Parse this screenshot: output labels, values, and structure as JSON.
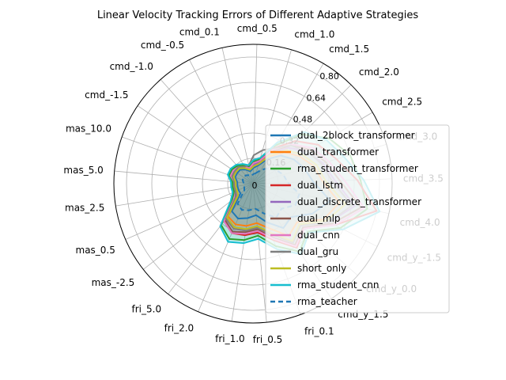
{
  "chart_data": {
    "type": "radar",
    "title": "Linear Velocity Tracking Errors of Different Adaptive Strategies",
    "axes": [
      "cmd_1.0",
      "cmd_0.5",
      "cmd_0.1",
      "cmd_-0.5",
      "cmd_-1.0",
      "cmd_-1.5",
      "mas_10.0",
      "mas_5.0",
      "mas_2.5",
      "mas_0.5",
      "mas_-2.5",
      "fri_5.0",
      "fri_2.0",
      "fri_1.0",
      "fri_0.5",
      "fri_0.1",
      "cmd_y_1.5",
      "cmd_y_0.0",
      "cmd_y_-1.5",
      "cmd_4.0",
      "cmd_3.5",
      "cmd_3.0",
      "cmd_2.5",
      "cmd_2.0",
      "cmd_1.5"
    ],
    "radial_ticks": [
      0.16,
      0.32,
      0.48,
      0.64,
      0.8
    ],
    "radial_tick_labels": [
      "0.16",
      "0.32",
      "0.48",
      "0.64",
      "0.80"
    ],
    "origin_label": "0",
    "rmax": 0.88,
    "grid": true,
    "legend_position": "right",
    "series": [
      {
        "name": "dual_2block_transformer",
        "color": "#1f77b4",
        "dashed": false,
        "fill": false,
        "values": [
          0.12,
          0.1,
          0.08,
          0.1,
          0.12,
          0.12,
          0.12,
          0.1,
          0.1,
          0.1,
          0.1,
          0.22,
          0.24,
          0.22,
          0.2,
          0.26,
          0.34,
          0.32,
          0.42,
          0.5,
          0.38,
          0.34,
          0.3,
          0.25,
          0.18
        ]
      },
      {
        "name": "dual_transformer",
        "color": "#ff7f0e",
        "dashed": false,
        "fill": false,
        "values": [
          0.13,
          0.11,
          0.09,
          0.11,
          0.13,
          0.13,
          0.13,
          0.11,
          0.11,
          0.11,
          0.12,
          0.26,
          0.28,
          0.27,
          0.25,
          0.3,
          0.4,
          0.37,
          0.5,
          0.56,
          0.44,
          0.4,
          0.34,
          0.28,
          0.2
        ]
      },
      {
        "name": "rma_student_transformer",
        "color": "#2ca02c",
        "dashed": false,
        "fill": false,
        "values": [
          0.16,
          0.14,
          0.11,
          0.13,
          0.15,
          0.16,
          0.16,
          0.13,
          0.13,
          0.13,
          0.17,
          0.33,
          0.38,
          0.36,
          0.33,
          0.42,
          0.52,
          0.46,
          0.62,
          0.74,
          0.68,
          0.64,
          0.56,
          0.44,
          0.28
        ]
      },
      {
        "name": "dual_lstm",
        "color": "#d62728",
        "dashed": false,
        "fill": false,
        "values": [
          0.15,
          0.13,
          0.1,
          0.12,
          0.14,
          0.14,
          0.14,
          0.12,
          0.12,
          0.12,
          0.15,
          0.3,
          0.34,
          0.33,
          0.31,
          0.38,
          0.49,
          0.43,
          0.58,
          0.8,
          0.66,
          0.55,
          0.48,
          0.38,
          0.26
        ]
      },
      {
        "name": "dual_discrete_transformer",
        "color": "#9467bd",
        "dashed": false,
        "fill": false,
        "values": [
          0.14,
          0.12,
          0.1,
          0.11,
          0.13,
          0.13,
          0.13,
          0.11,
          0.11,
          0.11,
          0.13,
          0.28,
          0.31,
          0.3,
          0.28,
          0.34,
          0.45,
          0.4,
          0.54,
          0.66,
          0.52,
          0.46,
          0.4,
          0.32,
          0.22
        ]
      },
      {
        "name": "dual_mlp",
        "color": "#8c564b",
        "dashed": false,
        "fill": false,
        "values": [
          0.15,
          0.13,
          0.1,
          0.12,
          0.14,
          0.14,
          0.14,
          0.12,
          0.12,
          0.12,
          0.14,
          0.29,
          0.33,
          0.31,
          0.29,
          0.36,
          0.47,
          0.42,
          0.56,
          0.7,
          0.55,
          0.48,
          0.42,
          0.34,
          0.24
        ]
      },
      {
        "name": "dual_cnn",
        "color": "#e377c2",
        "dashed": false,
        "fill": false,
        "values": [
          0.15,
          0.13,
          0.1,
          0.12,
          0.14,
          0.15,
          0.15,
          0.12,
          0.12,
          0.12,
          0.15,
          0.3,
          0.34,
          0.32,
          0.3,
          0.37,
          0.48,
          0.43,
          0.58,
          0.72,
          0.58,
          0.5,
          0.44,
          0.35,
          0.25
        ]
      },
      {
        "name": "dual_gru",
        "color": "#7f7f7f",
        "dashed": false,
        "fill": false,
        "values": [
          0.22,
          0.18,
          0.12,
          0.12,
          0.14,
          0.14,
          0.14,
          0.12,
          0.12,
          0.12,
          0.14,
          0.28,
          0.31,
          0.3,
          0.28,
          0.34,
          0.45,
          0.4,
          0.54,
          0.64,
          0.5,
          0.45,
          0.4,
          0.34,
          0.26
        ]
      },
      {
        "name": "short_only",
        "color": "#bcbd22",
        "dashed": false,
        "fill": false,
        "values": [
          0.13,
          0.11,
          0.09,
          0.11,
          0.13,
          0.13,
          0.13,
          0.11,
          0.11,
          0.11,
          0.12,
          0.27,
          0.3,
          0.29,
          0.27,
          0.33,
          0.44,
          0.39,
          0.52,
          0.6,
          0.46,
          0.42,
          0.36,
          0.3,
          0.21
        ]
      },
      {
        "name": "rma_student_cnn",
        "color": "#17becf",
        "dashed": false,
        "fill": true,
        "values": [
          0.17,
          0.15,
          0.12,
          0.14,
          0.16,
          0.17,
          0.17,
          0.14,
          0.14,
          0.14,
          0.18,
          0.34,
          0.4,
          0.38,
          0.35,
          0.44,
          0.54,
          0.47,
          0.64,
          0.82,
          0.7,
          0.6,
          0.54,
          0.46,
          0.3
        ]
      },
      {
        "name": "rma_teacher",
        "color": "#1f77b4",
        "dashed": true,
        "fill": false,
        "values": [
          0.07,
          0.06,
          0.05,
          0.06,
          0.07,
          0.07,
          0.07,
          0.06,
          0.06,
          0.06,
          0.07,
          0.16,
          0.18,
          0.17,
          0.16,
          0.2,
          0.26,
          0.24,
          0.3,
          0.3,
          0.22,
          0.2,
          0.17,
          0.14,
          0.1
        ]
      }
    ]
  }
}
